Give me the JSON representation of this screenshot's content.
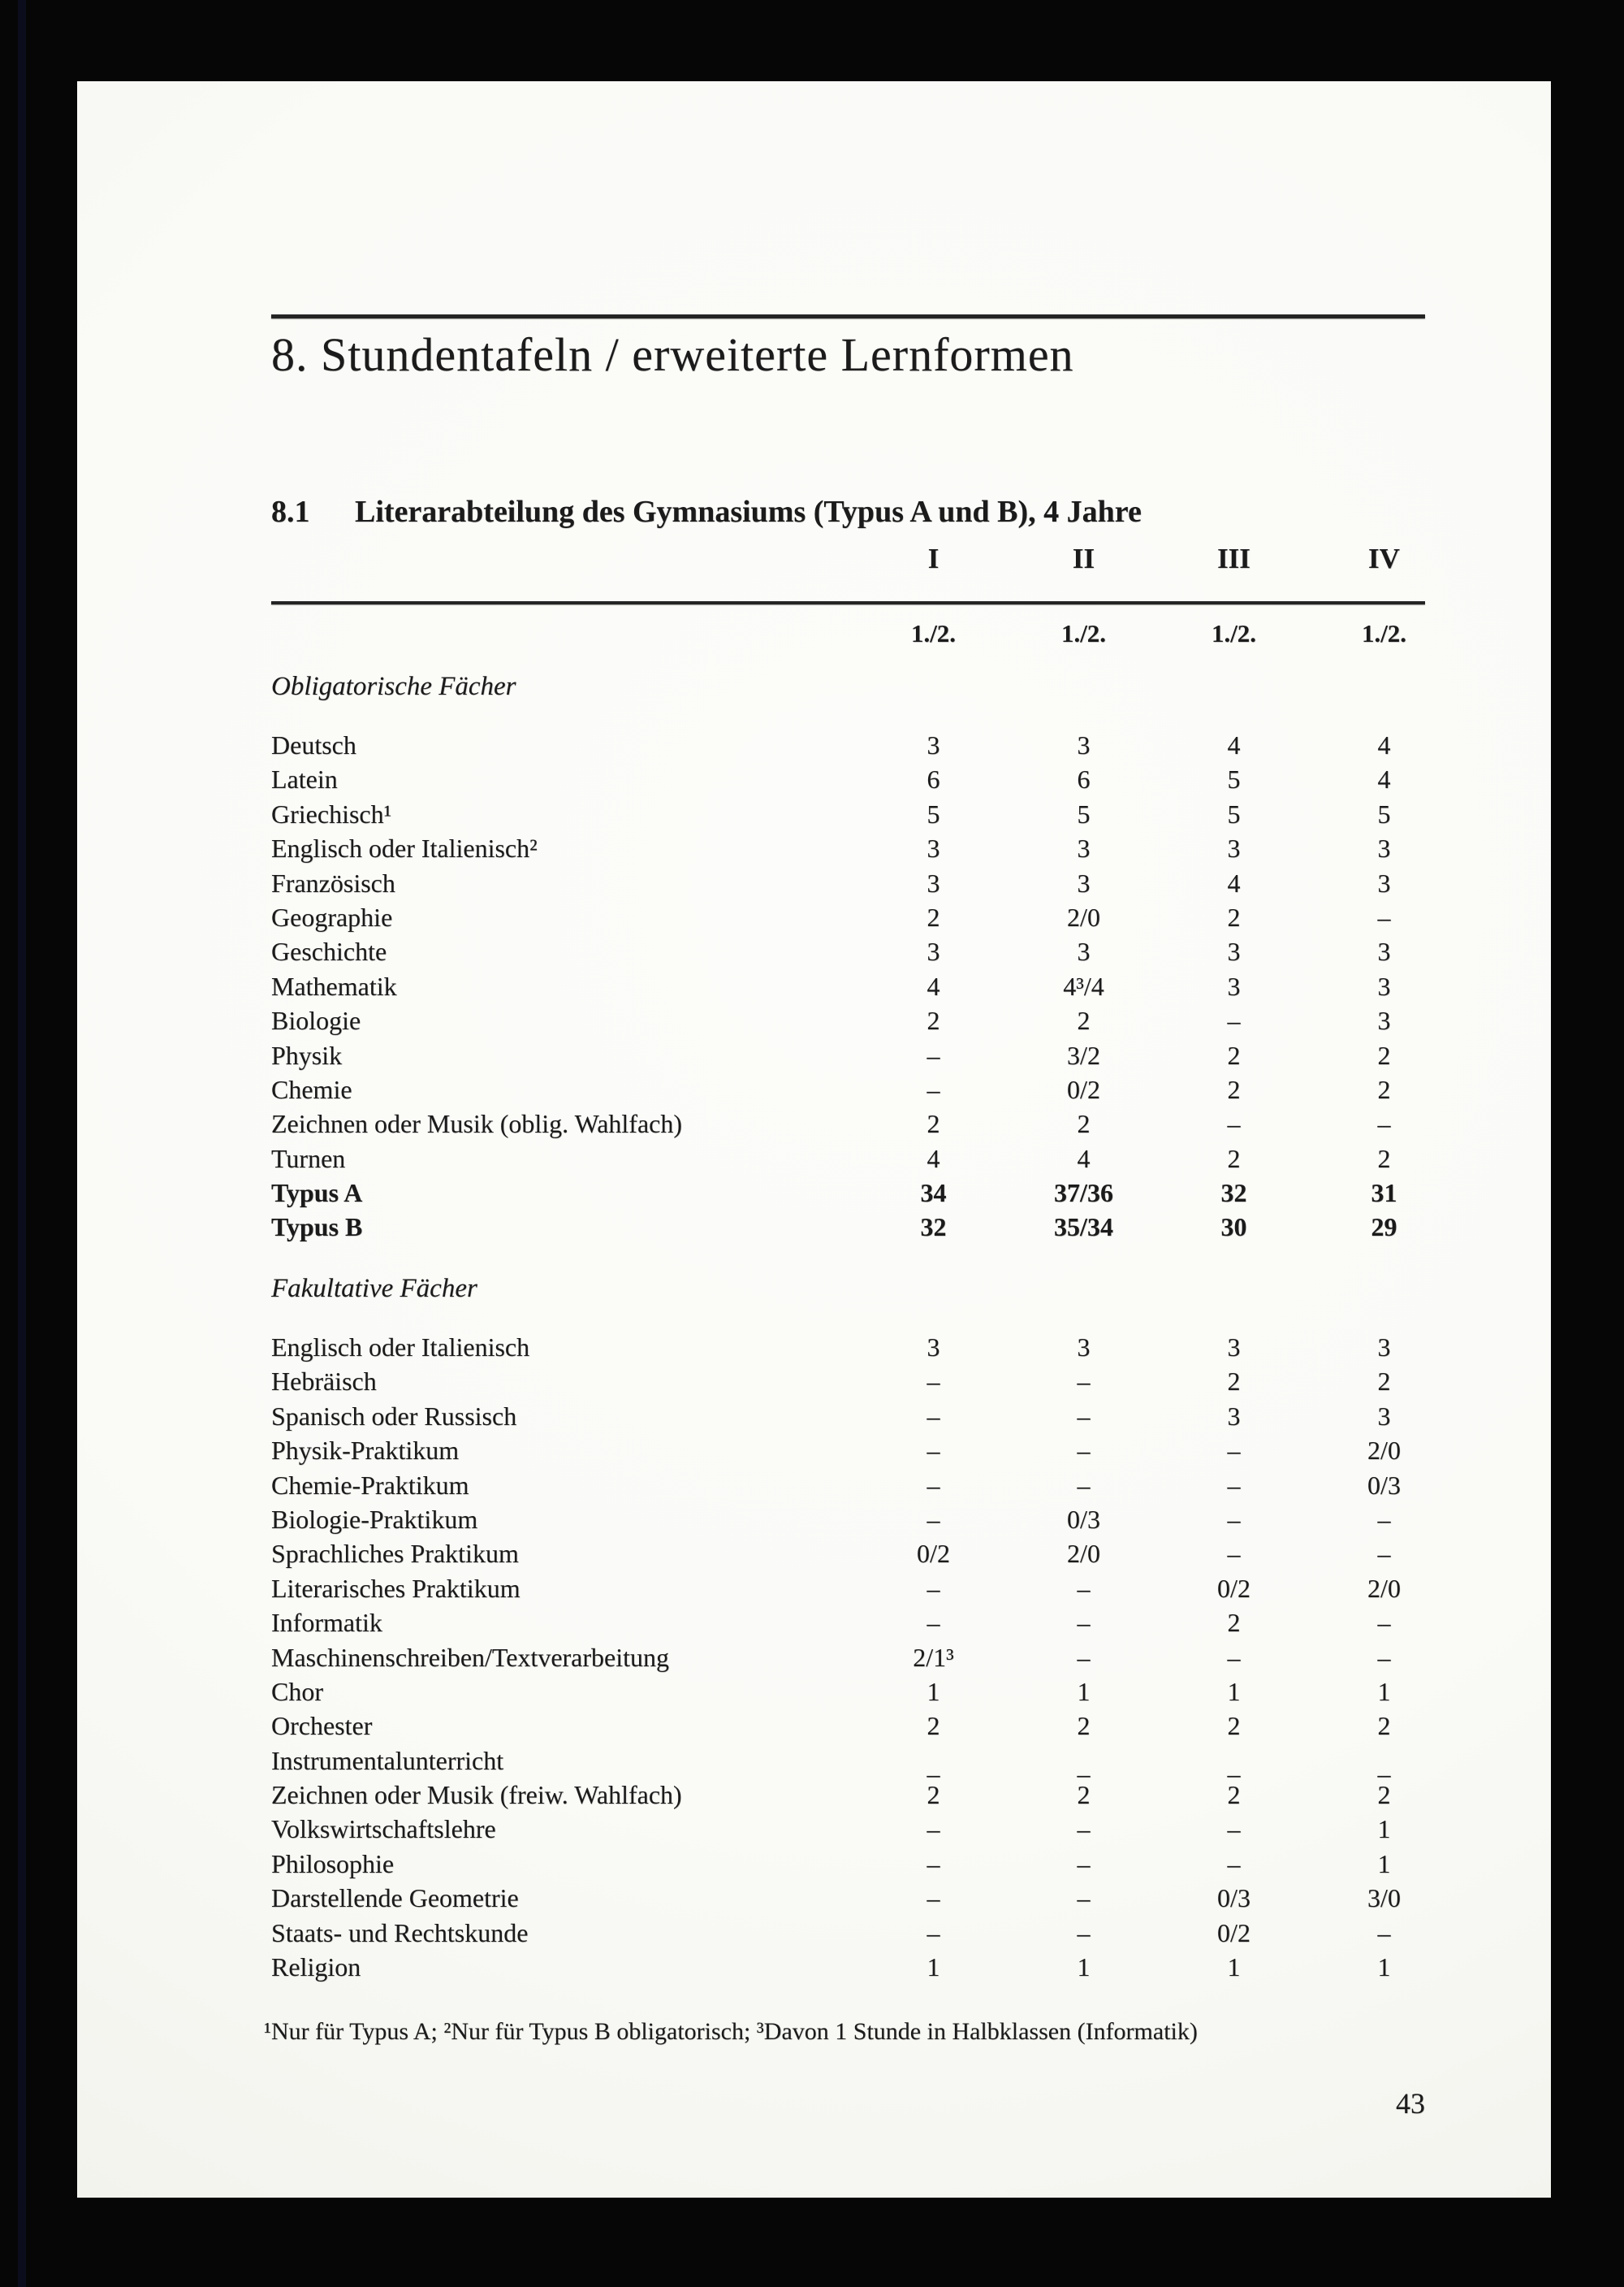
{
  "page": {
    "title": "8. Stundentafeln / erweiterte Lernformen",
    "section_number": "8.1",
    "section_title": "Literarabteilung des Gymnasiums (Typus A und B), 4 Jahre",
    "footnote": "¹Nur für Typus A; ²Nur für Typus B obligatorisch; ³Davon 1 Stunde in Halbklassen (Informatik)",
    "page_number": "43"
  },
  "table": {
    "column_headers": [
      "I",
      "II",
      "III",
      "IV"
    ],
    "subheaders": [
      "1./2.",
      "1./2.",
      "1./2.",
      "1./2."
    ],
    "sections": [
      {
        "heading": "Obligatorische Fächer",
        "rows": [
          {
            "label": "Deutsch",
            "values": [
              "3",
              "3",
              "4",
              "4"
            ]
          },
          {
            "label": "Latein",
            "values": [
              "6",
              "6",
              "5",
              "4"
            ]
          },
          {
            "label": "Griechisch¹",
            "values": [
              "5",
              "5",
              "5",
              "5"
            ]
          },
          {
            "label": "Englisch oder Italienisch²",
            "values": [
              "3",
              "3",
              "3",
              "3"
            ]
          },
          {
            "label": "Französisch",
            "values": [
              "3",
              "3",
              "4",
              "3"
            ]
          },
          {
            "label": "Geographie",
            "values": [
              "2",
              "2/0",
              "2",
              "–"
            ]
          },
          {
            "label": "Geschichte",
            "values": [
              "3",
              "3",
              "3",
              "3"
            ]
          },
          {
            "label": "Mathematik",
            "values": [
              "4",
              "4³/4",
              "3",
              "3"
            ]
          },
          {
            "label": "Biologie",
            "values": [
              "2",
              "2",
              "–",
              "3"
            ]
          },
          {
            "label": "Physik",
            "values": [
              "–",
              "3/2",
              "2",
              "2"
            ]
          },
          {
            "label": "Chemie",
            "values": [
              "–",
              "0/2",
              "2",
              "2"
            ]
          },
          {
            "label": "Zeichnen oder Musik (oblig. Wahlfach)",
            "values": [
              "2",
              "2",
              "–",
              "–"
            ]
          },
          {
            "label": "Turnen",
            "values": [
              "4",
              "4",
              "2",
              "2"
            ]
          },
          {
            "label": "Typus A",
            "values": [
              "34",
              "37/36",
              "32",
              "31"
            ],
            "bold": true
          },
          {
            "label": "Typus B",
            "values": [
              "32",
              "35/34",
              "30",
              "29"
            ],
            "bold": true
          }
        ]
      },
      {
        "heading": "Fakultative Fächer",
        "rows": [
          {
            "label": "Englisch oder Italienisch",
            "values": [
              "3",
              "3",
              "3",
              "3"
            ]
          },
          {
            "label": "Hebräisch",
            "values": [
              "–",
              "–",
              "2",
              "2"
            ]
          },
          {
            "label": "Spanisch oder Russisch",
            "values": [
              "–",
              "–",
              "3",
              "3"
            ]
          },
          {
            "label": "Physik-Praktikum",
            "values": [
              "–",
              "–",
              "–",
              "2/0"
            ]
          },
          {
            "label": "Chemie-Praktikum",
            "values": [
              "–",
              "–",
              "–",
              "0/3"
            ]
          },
          {
            "label": "Biologie-Praktikum",
            "values": [
              "–",
              "0/3",
              "–",
              "–"
            ]
          },
          {
            "label": "Sprachliches Praktikum",
            "values": [
              "0/2",
              "2/0",
              "–",
              "–"
            ]
          },
          {
            "label": "Literarisches Praktikum",
            "values": [
              "–",
              "–",
              "0/2",
              "2/0"
            ]
          },
          {
            "label": "Informatik",
            "values": [
              "–",
              "–",
              "2",
              "–"
            ]
          },
          {
            "label": "Maschinenschreiben/Textverarbeitung",
            "values": [
              "2/1³",
              "–",
              "–",
              "–"
            ]
          },
          {
            "label": "Chor",
            "values": [
              "1",
              "1",
              "1",
              "1"
            ]
          },
          {
            "label": "Orchester",
            "values": [
              "2",
              "2",
              "2",
              "2"
            ]
          },
          {
            "label": "Instrumentalunterricht",
            "values": [
              "–",
              "–",
              "–",
              "–"
            ],
            "values_lowered": true
          },
          {
            "label": "Zeichnen oder Musik (freiw. Wahlfach)",
            "values": [
              "2",
              "2",
              "2",
              "2"
            ]
          },
          {
            "label": "Volkswirtschaftslehre",
            "values": [
              "–",
              "–",
              "–",
              "1"
            ]
          },
          {
            "label": "Philosophie",
            "values": [
              "–",
              "–",
              "–",
              "1"
            ]
          },
          {
            "label": "Darstellende Geometrie",
            "values": [
              "–",
              "–",
              "0/3",
              "3/0"
            ]
          },
          {
            "label": "Staats- und Rechtskunde",
            "values": [
              "–",
              "–",
              "0/2",
              "–"
            ]
          },
          {
            "label": "Religion",
            "values": [
              "1",
              "1",
              "1",
              "1"
            ]
          }
        ]
      }
    ]
  }
}
